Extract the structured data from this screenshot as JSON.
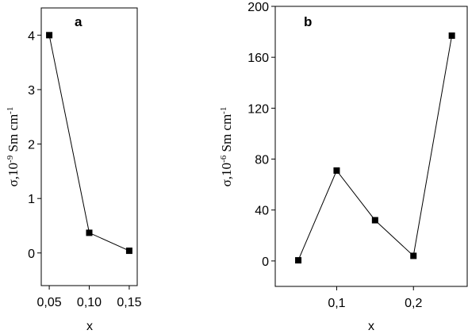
{
  "chart_data": [
    {
      "type": "line",
      "panel_label": "a",
      "xlabel": "x",
      "ylabel": {
        "base": "σ,10",
        "exp": "-9",
        "unit": " Sm cm",
        "unit_exp": "-1"
      },
      "xlim": [
        0.04,
        0.16
      ],
      "ylim": [
        -0.6,
        4.5
      ],
      "xticks": [
        {
          "value": 0.05,
          "label": "0,05"
        },
        {
          "value": 0.1,
          "label": "0,10"
        },
        {
          "value": 0.15,
          "label": "0,15"
        }
      ],
      "yticks": [
        {
          "value": 0,
          "label": "0"
        },
        {
          "value": 1,
          "label": "1"
        },
        {
          "value": 2,
          "label": "2"
        },
        {
          "value": 3,
          "label": "3"
        },
        {
          "value": 4,
          "label": "4"
        }
      ],
      "series": [
        {
          "marker": "square",
          "color": "#000000",
          "x": [
            0.05,
            0.1,
            0.15
          ],
          "y": [
            4.0,
            0.37,
            0.04
          ]
        }
      ]
    },
    {
      "type": "line",
      "panel_label": "b",
      "xlabel": "x",
      "ylabel": {
        "base": "σ,10",
        "exp": "-6",
        "unit": " Sm cm",
        "unit_exp": "-1"
      },
      "xlim": [
        0.02,
        0.27
      ],
      "ylim": [
        -20,
        200
      ],
      "xticks": [
        {
          "value": 0.1,
          "label": "0,1"
        },
        {
          "value": 0.2,
          "label": "0,2"
        }
      ],
      "yticks": [
        {
          "value": 0,
          "label": "0"
        },
        {
          "value": 40,
          "label": "40"
        },
        {
          "value": 80,
          "label": "80"
        },
        {
          "value": 120,
          "label": "120"
        },
        {
          "value": 160,
          "label": "160"
        },
        {
          "value": 200,
          "label": "200"
        }
      ],
      "series": [
        {
          "marker": "square",
          "color": "#000000",
          "x": [
            0.05,
            0.1,
            0.15,
            0.2,
            0.25
          ],
          "y": [
            0.5,
            71,
            32,
            4,
            177
          ]
        }
      ]
    }
  ]
}
